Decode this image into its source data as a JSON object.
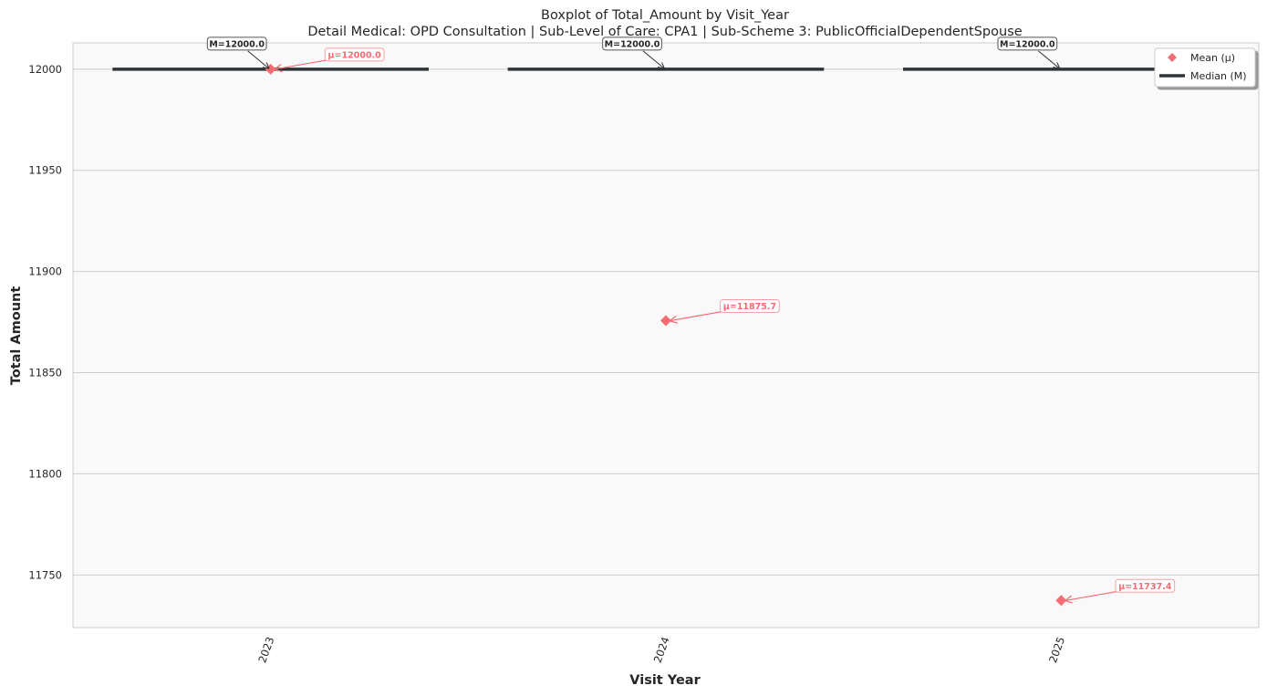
{
  "chart_data": {
    "type": "box",
    "title": "Boxplot of Total_Amount by Visit_Year",
    "subtitle": "Detail Medical: OPD Consultation | Sub-Level of Care: CPA1 | Sub-Scheme 3: PublicOfficialDependentSpouse",
    "xlabel": "Visit Year",
    "ylabel": "Total Amount",
    "ylim": [
      11724,
      12013
    ],
    "yticks": [
      11750,
      11800,
      11850,
      11900,
      11950,
      12000
    ],
    "categories": [
      "2023",
      "2024",
      "2025"
    ],
    "medians": [
      12000,
      12000,
      12000
    ],
    "means": [
      12000,
      11875.7,
      11737.4
    ],
    "median_labels": [
      "M=12000.0",
      "M=12000.0",
      "M=12000.0"
    ],
    "mean_labels": [
      "μ=12000.0",
      "μ=11875.7",
      "μ=11737.4"
    ],
    "grid": true,
    "legend": {
      "placement": "top-right",
      "entries": [
        {
          "label": "Mean (μ)",
          "marker": "diamond"
        },
        {
          "label": "Median (M)",
          "marker": "line"
        }
      ]
    },
    "colors": {
      "mean": "#f56b73",
      "median": "#2e3438",
      "plot_bg": "#f9f9f9",
      "grid": "#cccccc"
    }
  }
}
